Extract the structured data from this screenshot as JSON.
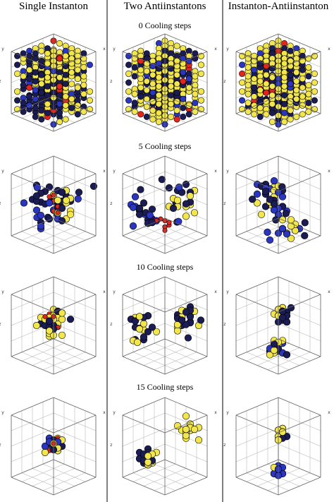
{
  "columns": [
    "Single Instanton",
    "Two Antiinstantons",
    "Instanton-Antiinstanton"
  ],
  "rows": [
    "0 Cooling steps",
    "5 Cooling steps",
    "10 Cooling steps",
    "15 Cooling steps"
  ],
  "axis_labels": [
    "x",
    "y",
    "z"
  ]
}
